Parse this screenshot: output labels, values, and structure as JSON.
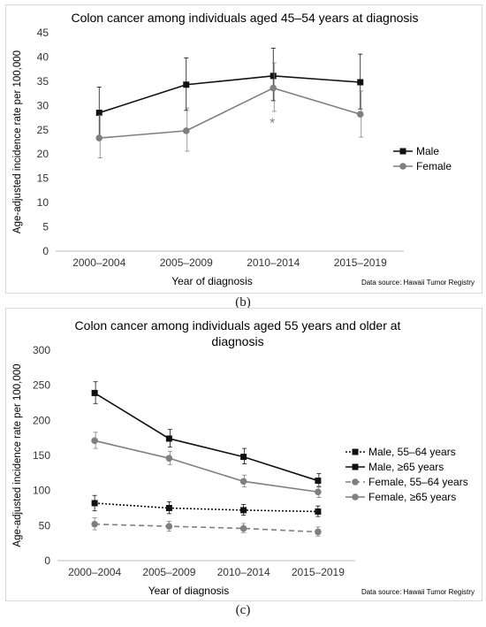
{
  "chart_data": [
    {
      "type": "line",
      "panel_label": "(b)",
      "title": "Colon cancer among individuals aged 45–54 years at diagnosis",
      "xlabel": "Year of diagnosis",
      "ylabel": "Age-adjusted incidence rate per 100,000",
      "categories": [
        "2000–2004",
        "2005–2009",
        "2010–2014",
        "2015–2019"
      ],
      "ylim": [
        0,
        45
      ],
      "yticks": [
        0,
        5,
        10,
        15,
        20,
        25,
        30,
        35,
        40,
        45
      ],
      "grid": false,
      "legend_position": "right",
      "source_note": "Data source: Hawaii Tumor Registry",
      "annotation": {
        "text": "*",
        "category": "2010–2014",
        "y": 26.5,
        "color": "#7f7f7f"
      },
      "series": [
        {
          "name": "Male",
          "color": "#111111",
          "marker": "square",
          "dash": "solid",
          "values": [
            28.5,
            34.3,
            36.1,
            34.8
          ],
          "err_low": [
            23.3,
            29.0,
            31.0,
            29.3
          ],
          "err_high": [
            33.8,
            39.8,
            41.8,
            40.6
          ]
        },
        {
          "name": "Female",
          "color": "#7f7f7f",
          "marker": "circle",
          "dash": "solid",
          "values": [
            23.3,
            24.8,
            33.6,
            28.2
          ],
          "err_low": [
            19.2,
            20.6,
            28.8,
            23.5
          ],
          "err_high": [
            28.0,
            29.5,
            38.8,
            33.0
          ]
        }
      ]
    },
    {
      "type": "line",
      "panel_label": "(c)",
      "title_lines": [
        "Colon cancer among individuals aged 55 years and older at",
        "diagnosis"
      ],
      "xlabel": "Year of diagnosis",
      "ylabel": "Age-adjusted incidence rate per 100,000",
      "categories": [
        "2000–2004",
        "2005–2009",
        "2010–2014",
        "2015–2019"
      ],
      "ylim": [
        0,
        300
      ],
      "yticks": [
        0,
        50,
        100,
        150,
        200,
        250,
        300
      ],
      "grid": false,
      "legend_position": "right",
      "source_note": "Data source: Hawaii Tumor Registry",
      "series": [
        {
          "name": "Male, 55–64 years",
          "color": "#111111",
          "marker": "square",
          "dash": "dotted",
          "values": [
            82,
            75,
            72,
            70
          ],
          "err_low": [
            71,
            67,
            65,
            63
          ],
          "err_high": [
            93,
            84,
            80,
            78
          ]
        },
        {
          "name": "Male, ≥65 years",
          "color": "#111111",
          "marker": "square",
          "dash": "solid",
          "values": [
            239,
            174,
            148,
            114
          ],
          "err_low": [
            224,
            162,
            138,
            105
          ],
          "err_high": [
            255,
            187,
            160,
            124
          ]
        },
        {
          "name": "Female, 55–64 years",
          "color": "#7f7f7f",
          "marker": "circle",
          "dash": "dashed",
          "values": [
            52,
            49,
            46,
            41
          ],
          "err_low": [
            44,
            42,
            40,
            35
          ],
          "err_high": [
            61,
            56,
            53,
            48
          ]
        },
        {
          "name": "Female, ≥65 years",
          "color": "#7f7f7f",
          "marker": "circle",
          "dash": "solid",
          "values": [
            171,
            146,
            113,
            98
          ],
          "err_low": [
            160,
            137,
            105,
            90
          ],
          "err_high": [
            183,
            156,
            122,
            106
          ]
        }
      ]
    }
  ]
}
